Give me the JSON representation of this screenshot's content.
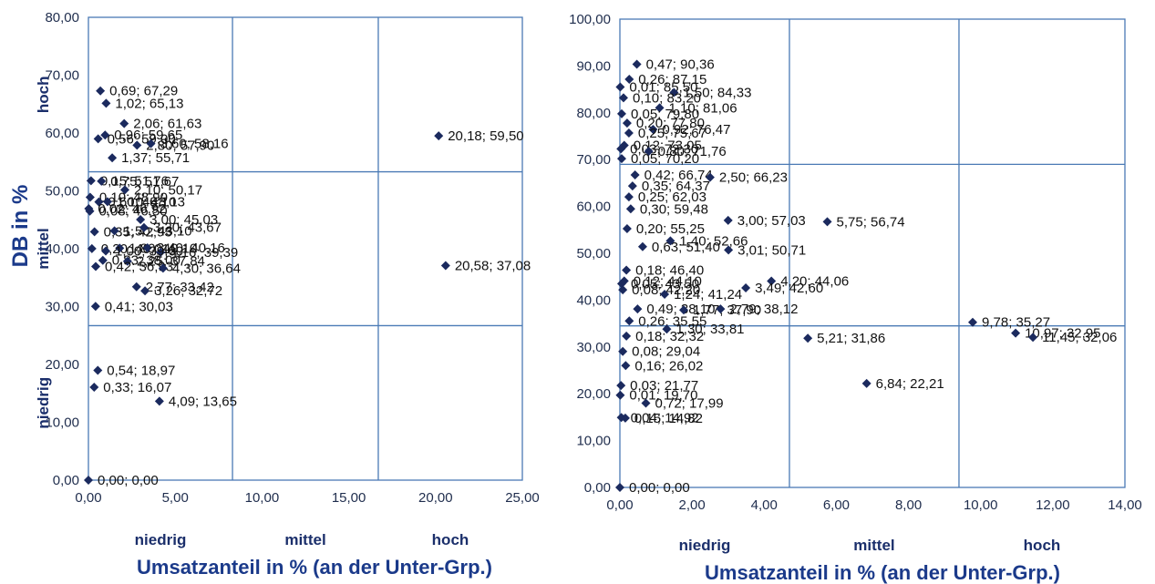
{
  "chart_data": [
    {
      "type": "scatter",
      "xlabel": "Umsatzanteil in % (an der Unter-Grp.)",
      "ylabel": "DB in %",
      "xlim": [
        0,
        25
      ],
      "ylim": [
        0,
        80
      ],
      "x_ticks": [
        "0,00",
        "5,00",
        "10,00",
        "15,00",
        "20,00",
        "25,00"
      ],
      "y_ticks": [
        "0,00",
        "10,00",
        "20,00",
        "30,00",
        "40,00",
        "50,00",
        "60,00",
        "70,00",
        "80,00"
      ],
      "x_dividers": [
        8.3,
        16.7
      ],
      "y_dividers": [
        26.7,
        53.3
      ],
      "x_band_labels": [
        "niedrig",
        "mittel",
        "hoch"
      ],
      "y_band_labels": [
        "niedrig",
        "mittel",
        "hoch"
      ],
      "grid": false,
      "marker_color": "#1b2a5e",
      "points": [
        {
          "x": 0.69,
          "y": 67.29,
          "label": "0,69; 67,29"
        },
        {
          "x": 1.02,
          "y": 65.13,
          "label": "1,02; 65,13"
        },
        {
          "x": 2.06,
          "y": 61.63,
          "label": "2,06; 61,63"
        },
        {
          "x": 0.56,
          "y": 59.0,
          "label": "0,56; 59,00"
        },
        {
          "x": 0.96,
          "y": 59.65,
          "label": "0,96; 59,65"
        },
        {
          "x": 2.8,
          "y": 57.9,
          "label": "2,80; 57,90"
        },
        {
          "x": 3.6,
          "y": 58.16,
          "label": "3,60; 58,16"
        },
        {
          "x": 1.37,
          "y": 55.71,
          "label": "1,37; 55,71"
        },
        {
          "x": 20.18,
          "y": 59.5,
          "label": "20,18; 59,50"
        },
        {
          "x": 0.15,
          "y": 51.76,
          "label": "0,15; 51,76"
        },
        {
          "x": 0.75,
          "y": 51.67,
          "label": "0,75; 51,67"
        },
        {
          "x": 2.1,
          "y": 50.17,
          "label": "2,10; 50,17"
        },
        {
          "x": 0.1,
          "y": 48.9,
          "label": "0,10; 48,90"
        },
        {
          "x": 0.6,
          "y": 48.1,
          "label": "0,60; 48,10"
        },
        {
          "x": 1.1,
          "y": 48.13,
          "label": "1,10; 48,13"
        },
        {
          "x": 0.02,
          "y": 46.92,
          "label": "0,02; 46,92"
        },
        {
          "x": 0.08,
          "y": 46.5,
          "label": "0,08; 46,50"
        },
        {
          "x": 3.0,
          "y": 45.03,
          "label": "3,00; 45,03"
        },
        {
          "x": 0.35,
          "y": 42.93,
          "label": "0,35; 42,93"
        },
        {
          "x": 1.5,
          "y": 43.1,
          "label": "1,50; 43,10"
        },
        {
          "x": 3.2,
          "y": 43.67,
          "label": "3,20; 43,67"
        },
        {
          "x": 0.2,
          "y": 40.01,
          "label": "0,20; 40,01"
        },
        {
          "x": 1.8,
          "y": 40.1,
          "label": "1,80; 40,10"
        },
        {
          "x": 3.4,
          "y": 40.16,
          "label": "3,40; 40,16"
        },
        {
          "x": 4.16,
          "y": 39.39,
          "label": "4,16; 39,39"
        },
        {
          "x": 1.0,
          "y": 39.6,
          "label": "1,00; 39,60"
        },
        {
          "x": 0.83,
          "y": 38.0,
          "label": "0,83; 38,00"
        },
        {
          "x": 2.25,
          "y": 37.84,
          "label": "2,25; 37,84"
        },
        {
          "x": 0.42,
          "y": 36.93,
          "label": "0,42; 36,93"
        },
        {
          "x": 4.3,
          "y": 36.64,
          "label": "4,30; 36,64"
        },
        {
          "x": 20.58,
          "y": 37.08,
          "label": "20,58; 37,08"
        },
        {
          "x": 2.77,
          "y": 33.42,
          "label": "2,77; 33,42"
        },
        {
          "x": 3.26,
          "y": 32.72,
          "label": "3,26; 32,72"
        },
        {
          "x": 0.41,
          "y": 30.03,
          "label": "0,41; 30,03"
        },
        {
          "x": 0.54,
          "y": 18.97,
          "label": "0,54; 18,97"
        },
        {
          "x": 0.33,
          "y": 16.07,
          "label": "0,33; 16,07"
        },
        {
          "x": 4.09,
          "y": 13.65,
          "label": "4,09; 13,65"
        },
        {
          "x": 0.0,
          "y": 0.0,
          "label": "0,00; 0,00"
        }
      ]
    },
    {
      "type": "scatter",
      "xlabel": "Umsatzanteil in % (an der Unter-Grp.)",
      "ylabel": "",
      "xlim": [
        0,
        14
      ],
      "ylim": [
        0,
        100
      ],
      "x_ticks": [
        "0,00",
        "2,00",
        "4,00",
        "6,00",
        "8,00",
        "10,00",
        "12,00",
        "14,00"
      ],
      "y_ticks": [
        "0,00",
        "10,00",
        "20,00",
        "30,00",
        "40,00",
        "50,00",
        "60,00",
        "70,00",
        "80,00",
        "90,00",
        "100,00"
      ],
      "x_dividers": [
        4.7,
        9.4
      ],
      "y_dividers": [
        34.5,
        69.0
      ],
      "x_band_labels": [
        "niedrig",
        "mittel",
        "hoch"
      ],
      "grid": false,
      "marker_color": "#1b2a5e",
      "points": [
        {
          "x": 0.47,
          "y": 90.36,
          "label": "0,47; 90,36"
        },
        {
          "x": 0.26,
          "y": 87.15,
          "label": "0,26; 87,15"
        },
        {
          "x": 0.01,
          "y": 85.5,
          "label": "0,01; 85,50"
        },
        {
          "x": 1.5,
          "y": 84.33,
          "label": "1,50; 84,33"
        },
        {
          "x": 0.1,
          "y": 83.2,
          "label": "0,10; 83,20"
        },
        {
          "x": 1.1,
          "y": 81.06,
          "label": "1,10; 81,06"
        },
        {
          "x": 0.05,
          "y": 79.8,
          "label": "0,05; 79,80"
        },
        {
          "x": 0.2,
          "y": 77.8,
          "label": "0,20; 77,80"
        },
        {
          "x": 0.92,
          "y": 76.47,
          "label": "0,92; 76,47"
        },
        {
          "x": 0.25,
          "y": 75.67,
          "label": "0,25; 75,67"
        },
        {
          "x": 0.12,
          "y": 73.05,
          "label": "0,12; 73,05"
        },
        {
          "x": 0.03,
          "y": 72.3,
          "label": "0,03; 72,30"
        },
        {
          "x": 0.8,
          "y": 71.76,
          "label": "0,80; 71,76"
        },
        {
          "x": 0.05,
          "y": 70.2,
          "label": "0,05; 70,20"
        },
        {
          "x": 0.42,
          "y": 66.74,
          "label": "0,42; 66,74"
        },
        {
          "x": 2.5,
          "y": 66.23,
          "label": "2,50; 66,23"
        },
        {
          "x": 0.35,
          "y": 64.37,
          "label": "0,35; 64,37"
        },
        {
          "x": 0.25,
          "y": 62.03,
          "label": "0,25; 62,03"
        },
        {
          "x": 0.3,
          "y": 59.48,
          "label": "0,30; 59,48"
        },
        {
          "x": 3.0,
          "y": 57.03,
          "label": "3,00; 57,03"
        },
        {
          "x": 5.75,
          "y": 56.74,
          "label": "5,75; 56,74"
        },
        {
          "x": 0.2,
          "y": 55.25,
          "label": "0,20; 55,25"
        },
        {
          "x": 0.63,
          "y": 51.4,
          "label": "0,63; 51,40"
        },
        {
          "x": 1.4,
          "y": 52.66,
          "label": "1,40; 52,66"
        },
        {
          "x": 3.01,
          "y": 50.71,
          "label": "3,01; 50,71"
        },
        {
          "x": 0.18,
          "y": 46.4,
          "label": "0,18; 46,40"
        },
        {
          "x": 0.12,
          "y": 44.1,
          "label": "0,12; 44,10"
        },
        {
          "x": 0.05,
          "y": 43.5,
          "label": "0,05; 43,50"
        },
        {
          "x": 0.08,
          "y": 42.2,
          "label": "0,08; 42,20"
        },
        {
          "x": 4.2,
          "y": 44.06,
          "label": "4,20; 44,06"
        },
        {
          "x": 3.49,
          "y": 42.6,
          "label": "3,49; 42,60"
        },
        {
          "x": 1.24,
          "y": 41.24,
          "label": "1,24; 41,24"
        },
        {
          "x": 0.49,
          "y": 38.1,
          "label": "0,49; 38,10"
        },
        {
          "x": 1.77,
          "y": 37.9,
          "label": "1,77; 37,90"
        },
        {
          "x": 2.79,
          "y": 38.12,
          "label": "2,79; 38,12"
        },
        {
          "x": 0.26,
          "y": 35.55,
          "label": "0,26; 35,55"
        },
        {
          "x": 1.3,
          "y": 33.81,
          "label": "1,30; 33,81"
        },
        {
          "x": 9.78,
          "y": 35.27,
          "label": "9,78; 35,27"
        },
        {
          "x": 10.97,
          "y": 32.95,
          "label": "10,97; 32,95"
        },
        {
          "x": 11.45,
          "y": 32.06,
          "label": "11,45; 32,06"
        },
        {
          "x": 0.18,
          "y": 32.32,
          "label": "0,18; 32,32"
        },
        {
          "x": 5.21,
          "y": 31.86,
          "label": "5,21; 31,86"
        },
        {
          "x": 0.08,
          "y": 29.04,
          "label": "0,08; 29,04"
        },
        {
          "x": 0.16,
          "y": 26.02,
          "label": "0,16; 26,02"
        },
        {
          "x": 6.84,
          "y": 22.21,
          "label": "6,84; 22,21"
        },
        {
          "x": 0.03,
          "y": 21.77,
          "label": "0,03; 21,77"
        },
        {
          "x": 0.01,
          "y": 19.7,
          "label": "0,01; 19,70"
        },
        {
          "x": 0.72,
          "y": 17.99,
          "label": "0,72; 17,99"
        },
        {
          "x": 0.04,
          "y": 14.92,
          "label": "0,04; 14,92"
        },
        {
          "x": 0.15,
          "y": 14.82,
          "label": "0,15; 14,82"
        },
        {
          "x": 0.0,
          "y": 0.0,
          "label": "0,00; 0,00"
        }
      ]
    }
  ]
}
